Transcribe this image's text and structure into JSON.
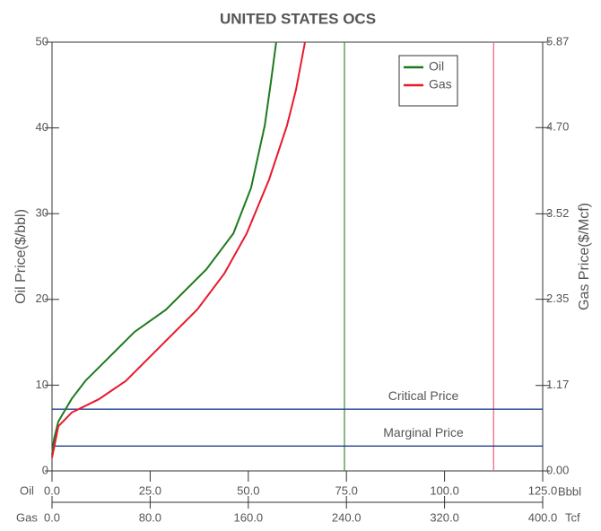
{
  "chart_data": {
    "type": "line",
    "title": "UNITED STATES OCS",
    "y_label": "Oil Price($/bbl)",
    "y2_label": "Gas Price($/Mcf)",
    "x_axis_name": "Oil",
    "x_unit": "Bbbl",
    "x2_axis_name": "Gas",
    "x2_unit": "Tcf",
    "xlim": [
      0,
      125
    ],
    "xticks": [
      {
        "value": 0,
        "label": "0.0"
      },
      {
        "value": 25,
        "label": "25.0"
      },
      {
        "value": 50,
        "label": "50.0"
      },
      {
        "value": 75,
        "label": "75.0"
      },
      {
        "value": 100,
        "label": "100.0"
      },
      {
        "value": 125,
        "label": "125.0"
      }
    ],
    "x2lim": [
      0,
      400
    ],
    "x2ticks": [
      {
        "value": 0,
        "label": "0.0"
      },
      {
        "value": 80,
        "label": "80.0"
      },
      {
        "value": 160,
        "label": "160.0"
      },
      {
        "value": 240,
        "label": "240.0"
      },
      {
        "value": 320,
        "label": "320.0"
      },
      {
        "value": 400,
        "label": "400.0"
      }
    ],
    "ylim": [
      0,
      50
    ],
    "yticks": [
      0,
      10,
      20,
      30,
      40,
      50
    ],
    "y2lim": [
      0,
      5.87
    ],
    "y2ticks": [
      {
        "value": 0,
        "label": "0.00"
      },
      1.17,
      2.35,
      3.52,
      {
        "value": 4.7,
        "label": "4.70"
      },
      5.87
    ],
    "legend": "upper right",
    "series": [
      {
        "name": "Oil",
        "color": "#1e7a1e",
        "x": [
          0,
          0.5,
          1.6,
          5,
          8.5,
          14.2,
          21,
          29,
          39.3,
          46.2,
          50.7,
          54.2,
          55.8,
          57.1
        ],
        "values": [
          1.8,
          3.7,
          5.75,
          8.4,
          10.5,
          13.1,
          16.2,
          18.8,
          23.5,
          27.7,
          33,
          40.3,
          45.5,
          50
        ]
      },
      {
        "name": "Gas",
        "color": "#e8192c",
        "axis": "y2",
        "xaxis": "x2",
        "x": [
          0,
          5.1,
          16.1,
          38,
          60,
          89.2,
          118.5,
          140.4,
          158.7,
          177,
          191.6,
          198.9,
          206.2
        ],
        "values": [
          0.18,
          0.61,
          0.8,
          0.98,
          1.23,
          1.72,
          2.21,
          2.7,
          3.25,
          3.99,
          4.73,
          5.22,
          5.87
        ]
      }
    ],
    "horizontal_lines": [
      {
        "label": "Critical Price",
        "value": 7.2,
        "color": "#1f3f8f"
      },
      {
        "label": "Marginal Price",
        "value": 2.9,
        "color": "#1f3f8f"
      }
    ],
    "vertical_lines": [
      {
        "value": 74.5,
        "xaxis": "x",
        "color": "#3a8a3a"
      },
      {
        "value": 360,
        "xaxis": "x2",
        "color": "#f06080"
      }
    ]
  }
}
